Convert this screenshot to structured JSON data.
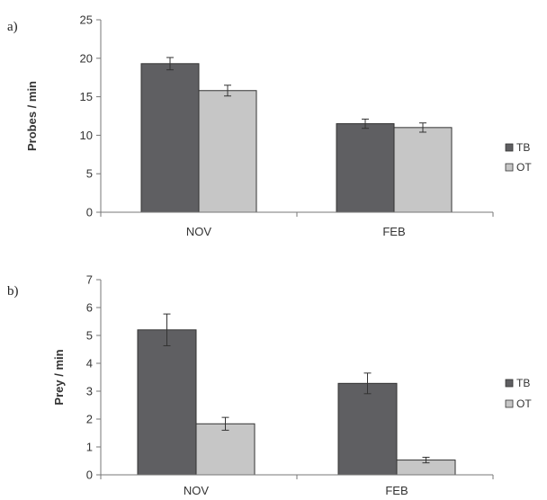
{
  "chart_data": [
    {
      "type": "bar",
      "panel_label": "a)",
      "ylabel": "Probes / min",
      "ylim": [
        0,
        25
      ],
      "yticks": [
        0,
        5,
        10,
        15,
        20,
        25
      ],
      "categories": [
        "NOV",
        "FEB"
      ],
      "series": [
        {
          "name": "TB",
          "color": "#5f5f62",
          "values": [
            19.3,
            11.5
          ],
          "errors": [
            0.8,
            0.6
          ]
        },
        {
          "name": "OT",
          "color": "#c6c6c6",
          "values": [
            15.8,
            11.0
          ],
          "errors": [
            0.7,
            0.6
          ]
        }
      ],
      "legend": "right",
      "grid": false
    },
    {
      "type": "bar",
      "panel_label": "b)",
      "ylabel": "Prey / min",
      "ylim": [
        0,
        7
      ],
      "yticks": [
        0,
        1,
        2,
        3,
        4,
        5,
        6,
        7
      ],
      "categories": [
        "NOV",
        "FEB"
      ],
      "series": [
        {
          "name": "TB",
          "color": "#5f5f62",
          "values": [
            5.2,
            3.28
          ],
          "errors": [
            0.57,
            0.37
          ]
        },
        {
          "name": "OT",
          "color": "#c6c6c6",
          "values": [
            1.83,
            0.53
          ],
          "errors": [
            0.23,
            0.1
          ]
        }
      ],
      "legend": "right",
      "grid": false
    }
  ]
}
